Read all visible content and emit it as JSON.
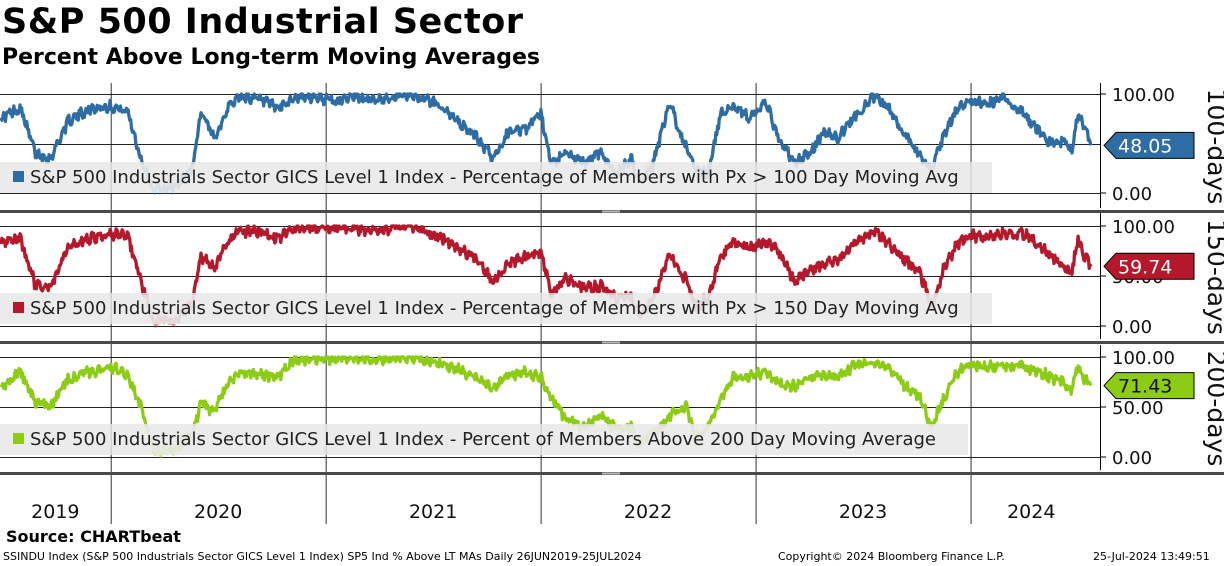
{
  "header": {
    "title": "S&P 500 Industrial Sector",
    "subtitle": "Percent Above Long-term Moving Averages"
  },
  "footer": {
    "source": "Source: CHARTbeat",
    "description": "SSINDU Index (S&P 500 Industrials Sector GICS Level 1 Index) SP5 Ind % Above LT MAs  Daily 26JUN2019-25JUL2024",
    "copyright": "Copyright© 2024 Bloomberg Finance L.P.",
    "timestamp": "25-Jul-2024 13:49:51"
  },
  "chart_data": {
    "type": "line",
    "x_range": [
      "2019-06-26",
      "2024-07-25"
    ],
    "x_ticks": [
      "2019",
      "2020",
      "2021",
      "2022",
      "2023",
      "2024"
    ],
    "panels": [
      {
        "key": "100",
        "name": "S&P 500 Industrials Sector GICS Level 1 Index - Percentage of Members with Px > 100 Day Moving Avg",
        "axis_label": "100-days",
        "color": "#2e6ca4",
        "last_value": "48.05",
        "yticks": [
          "100.00",
          "0.00"
        ],
        "ylim": [
          0,
          100
        ],
        "anchors": [
          [
            2019.49,
            76
          ],
          [
            2019.58,
            86
          ],
          [
            2019.65,
            40
          ],
          [
            2019.72,
            35
          ],
          [
            2019.8,
            72
          ],
          [
            2019.9,
            85
          ],
          [
            2020.0,
            88
          ],
          [
            2020.08,
            82
          ],
          [
            2020.14,
            35
          ],
          [
            2020.2,
            3
          ],
          [
            2020.3,
            6
          ],
          [
            2020.38,
            26
          ],
          [
            2020.42,
            82
          ],
          [
            2020.48,
            55
          ],
          [
            2020.55,
            88
          ],
          [
            2020.6,
            98
          ],
          [
            2020.7,
            94
          ],
          [
            2020.78,
            85
          ],
          [
            2020.85,
            96
          ],
          [
            2020.95,
            97
          ],
          [
            2021.05,
            92
          ],
          [
            2021.12,
            99
          ],
          [
            2021.2,
            93
          ],
          [
            2021.3,
            97
          ],
          [
            2021.4,
            100
          ],
          [
            2021.48,
            93
          ],
          [
            2021.55,
            86
          ],
          [
            2021.62,
            70
          ],
          [
            2021.7,
            57
          ],
          [
            2021.78,
            35
          ],
          [
            2021.85,
            62
          ],
          [
            2021.93,
            65
          ],
          [
            2022.0,
            80
          ],
          [
            2022.05,
            28
          ],
          [
            2022.12,
            40
          ],
          [
            2022.2,
            30
          ],
          [
            2022.28,
            42
          ],
          [
            2022.35,
            18
          ],
          [
            2022.42,
            35
          ],
          [
            2022.46,
            10
          ],
          [
            2022.52,
            28
          ],
          [
            2022.6,
            90
          ],
          [
            2022.68,
            44
          ],
          [
            2022.72,
            22
          ],
          [
            2022.78,
            20
          ],
          [
            2022.84,
            82
          ],
          [
            2022.9,
            88
          ],
          [
            2022.97,
            76
          ],
          [
            2023.05,
            91
          ],
          [
            2023.1,
            58
          ],
          [
            2023.18,
            30
          ],
          [
            2023.25,
            40
          ],
          [
            2023.32,
            62
          ],
          [
            2023.38,
            55
          ],
          [
            2023.45,
            75
          ],
          [
            2023.55,
            98
          ],
          [
            2023.62,
            85
          ],
          [
            2023.7,
            58
          ],
          [
            2023.76,
            40
          ],
          [
            2023.82,
            24
          ],
          [
            2023.88,
            60
          ],
          [
            2023.94,
            86
          ],
          [
            2024.0,
            92
          ],
          [
            2024.08,
            90
          ],
          [
            2024.15,
            96
          ],
          [
            2024.25,
            80
          ],
          [
            2024.32,
            62
          ],
          [
            2024.38,
            50
          ],
          [
            2024.44,
            52
          ],
          [
            2024.47,
            42
          ],
          [
            2024.5,
            82
          ],
          [
            2024.53,
            65
          ],
          [
            2024.56,
            48.05
          ]
        ]
      },
      {
        "key": "150",
        "name": "S&P 500 Industrials Sector GICS Level 1 Index - Percentage of Members with Px > 150 Day Moving Avg",
        "axis_label": "150-days",
        "color": "#b5172b",
        "last_value": "59.74",
        "yticks": [
          "100.00",
          "50.00",
          "0.00"
        ],
        "ylim": [
          0,
          100
        ],
        "anchors": [
          [
            2019.49,
            82
          ],
          [
            2019.58,
            88
          ],
          [
            2019.65,
            40
          ],
          [
            2019.72,
            38
          ],
          [
            2019.8,
            78
          ],
          [
            2019.9,
            88
          ],
          [
            2020.0,
            92
          ],
          [
            2020.08,
            90
          ],
          [
            2020.14,
            45
          ],
          [
            2020.2,
            5
          ],
          [
            2020.3,
            6
          ],
          [
            2020.38,
            22
          ],
          [
            2020.42,
            70
          ],
          [
            2020.48,
            58
          ],
          [
            2020.55,
            85
          ],
          [
            2020.6,
            95
          ],
          [
            2020.7,
            94
          ],
          [
            2020.78,
            88
          ],
          [
            2020.85,
            97
          ],
          [
            2020.95,
            98
          ],
          [
            2021.05,
            97
          ],
          [
            2021.12,
            99
          ],
          [
            2021.2,
            95
          ],
          [
            2021.3,
            97
          ],
          [
            2021.4,
            100
          ],
          [
            2021.48,
            92
          ],
          [
            2021.55,
            88
          ],
          [
            2021.62,
            78
          ],
          [
            2021.7,
            68
          ],
          [
            2021.78,
            45
          ],
          [
            2021.85,
            62
          ],
          [
            2021.93,
            70
          ],
          [
            2022.0,
            75
          ],
          [
            2022.05,
            32
          ],
          [
            2022.12,
            48
          ],
          [
            2022.2,
            38
          ],
          [
            2022.28,
            40
          ],
          [
            2022.35,
            28
          ],
          [
            2022.42,
            30
          ],
          [
            2022.46,
            8
          ],
          [
            2022.52,
            25
          ],
          [
            2022.6,
            70
          ],
          [
            2022.68,
            45
          ],
          [
            2022.72,
            20
          ],
          [
            2022.78,
            28
          ],
          [
            2022.84,
            70
          ],
          [
            2022.9,
            85
          ],
          [
            2022.97,
            78
          ],
          [
            2023.05,
            85
          ],
          [
            2023.1,
            78
          ],
          [
            2023.18,
            45
          ],
          [
            2023.25,
            55
          ],
          [
            2023.32,
            62
          ],
          [
            2023.38,
            65
          ],
          [
            2023.45,
            80
          ],
          [
            2023.55,
            95
          ],
          [
            2023.62,
            82
          ],
          [
            2023.7,
            65
          ],
          [
            2023.76,
            55
          ],
          [
            2023.82,
            20
          ],
          [
            2023.88,
            60
          ],
          [
            2023.94,
            82
          ],
          [
            2024.0,
            90
          ],
          [
            2024.08,
            88
          ],
          [
            2024.15,
            92
          ],
          [
            2024.25,
            92
          ],
          [
            2024.32,
            80
          ],
          [
            2024.38,
            70
          ],
          [
            2024.44,
            60
          ],
          [
            2024.47,
            52
          ],
          [
            2024.5,
            88
          ],
          [
            2024.53,
            70
          ],
          [
            2024.56,
            59.74
          ]
        ]
      },
      {
        "key": "200",
        "name": "S&P 500 Industrials Sector GICS Level 1 Index - Percent of Members Above 200 Day Moving Average",
        "axis_label": "200-days",
        "color": "#8ccc14",
        "last_value": "71.43",
        "yticks": [
          "100.00",
          "50.00",
          "0.00"
        ],
        "ylim": [
          0,
          100
        ],
        "anchors": [
          [
            2019.49,
            70
          ],
          [
            2019.58,
            85
          ],
          [
            2019.65,
            55
          ],
          [
            2019.72,
            50
          ],
          [
            2019.8,
            78
          ],
          [
            2019.9,
            85
          ],
          [
            2020.0,
            90
          ],
          [
            2020.08,
            82
          ],
          [
            2020.14,
            50
          ],
          [
            2020.2,
            5
          ],
          [
            2020.3,
            8
          ],
          [
            2020.38,
            22
          ],
          [
            2020.42,
            55
          ],
          [
            2020.48,
            45
          ],
          [
            2020.55,
            75
          ],
          [
            2020.6,
            85
          ],
          [
            2020.7,
            82
          ],
          [
            2020.78,
            80
          ],
          [
            2020.85,
            97
          ],
          [
            2020.95,
            98
          ],
          [
            2021.05,
            98
          ],
          [
            2021.12,
            100
          ],
          [
            2021.2,
            98
          ],
          [
            2021.3,
            99
          ],
          [
            2021.4,
            100
          ],
          [
            2021.48,
            96
          ],
          [
            2021.55,
            92
          ],
          [
            2021.62,
            88
          ],
          [
            2021.7,
            78
          ],
          [
            2021.78,
            68
          ],
          [
            2021.85,
            82
          ],
          [
            2021.93,
            85
          ],
          [
            2022.0,
            80
          ],
          [
            2022.05,
            58
          ],
          [
            2022.12,
            38
          ],
          [
            2022.2,
            30
          ],
          [
            2022.28,
            42
          ],
          [
            2022.35,
            28
          ],
          [
            2022.42,
            30
          ],
          [
            2022.46,
            14
          ],
          [
            2022.52,
            22
          ],
          [
            2022.6,
            42
          ],
          [
            2022.68,
            50
          ],
          [
            2022.72,
            18
          ],
          [
            2022.78,
            30
          ],
          [
            2022.84,
            60
          ],
          [
            2022.9,
            82
          ],
          [
            2022.97,
            80
          ],
          [
            2023.05,
            85
          ],
          [
            2023.1,
            75
          ],
          [
            2023.18,
            70
          ],
          [
            2023.25,
            78
          ],
          [
            2023.32,
            82
          ],
          [
            2023.38,
            80
          ],
          [
            2023.45,
            90
          ],
          [
            2023.55,
            95
          ],
          [
            2023.62,
            88
          ],
          [
            2023.7,
            70
          ],
          [
            2023.76,
            62
          ],
          [
            2023.82,
            30
          ],
          [
            2023.88,
            60
          ],
          [
            2023.94,
            85
          ],
          [
            2024.0,
            92
          ],
          [
            2024.08,
            90
          ],
          [
            2024.15,
            92
          ],
          [
            2024.25,
            90
          ],
          [
            2024.32,
            86
          ],
          [
            2024.38,
            78
          ],
          [
            2024.44,
            75
          ],
          [
            2024.47,
            65
          ],
          [
            2024.5,
            92
          ],
          [
            2024.53,
            78
          ],
          [
            2024.56,
            71.43
          ]
        ]
      }
    ]
  }
}
